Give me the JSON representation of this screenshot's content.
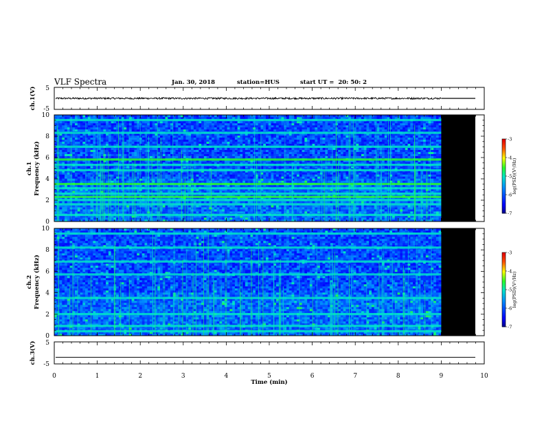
{
  "header": {
    "title": "VLF Spectra",
    "date": "Jan. 30, 2018",
    "station": "station=HUS",
    "start": "start UT =  20: 50: 2"
  },
  "colors": {
    "background": "#ffffff",
    "waveform": "#000000",
    "no_data": "#000000"
  },
  "chart_data": [
    {
      "type": "line",
      "name": "ch1-waveform",
      "ylabel": "ch.1(V)",
      "ylim": [
        -5,
        5
      ],
      "y_ticks": [
        "5",
        "-5"
      ],
      "xlim": [
        0,
        10
      ],
      "data_until_min": 9.0,
      "amplitude_approx": 0.4
    },
    {
      "type": "heatmap",
      "name": "ch1-spectrogram",
      "ylabel": "ch.1",
      "ylabel2": "Frequency (kHz)",
      "ylim": [
        0,
        10
      ],
      "y_ticks": [
        "0",
        "2",
        "4",
        "6",
        "8",
        "10"
      ],
      "xlim": [
        0,
        10
      ],
      "data_until_min": 9.0,
      "horizontal_bands_khz": [
        9.5,
        8.3,
        7.0,
        5.8,
        5.3,
        4.8,
        3.5,
        3.1,
        2.6,
        2.3,
        2.0,
        1.6,
        0.6
      ],
      "colorbar": {
        "label": "log(PSD)(V²/Hz)",
        "ticks": [
          "-3",
          "-4",
          "-5",
          "-6",
          "-7"
        ],
        "range": [
          -7,
          -3
        ]
      }
    },
    {
      "type": "heatmap",
      "name": "ch2-spectrogram",
      "ylabel": "ch.2",
      "ylabel2": "Frequency (kHz)",
      "ylim": [
        0,
        10
      ],
      "y_ticks": [
        "0",
        "2",
        "4",
        "6",
        "8",
        "10"
      ],
      "xlim": [
        0,
        10
      ],
      "data_until_min": 9.0,
      "horizontal_bands_khz": [
        9.5,
        8.2,
        6.9,
        5.7,
        3.5,
        2.0,
        0.9,
        0.4
      ],
      "colorbar": {
        "label": "log(PSD)(V²/Hz)",
        "ticks": [
          "-3",
          "-4",
          "-5",
          "-6",
          "-7"
        ],
        "range": [
          -7,
          -3
        ]
      }
    },
    {
      "type": "line",
      "name": "ch3-waveform",
      "ylabel": "ch.3(V)",
      "ylim": [
        -5,
        5
      ],
      "y_ticks": [
        "5",
        "-5"
      ],
      "xlim": [
        0,
        10
      ],
      "constant_value": -2
    }
  ],
  "x_axis": {
    "label": "Time (min)",
    "ticks": [
      "0",
      "1",
      "2",
      "3",
      "4",
      "5",
      "6",
      "7",
      "8",
      "9",
      "10"
    ]
  }
}
